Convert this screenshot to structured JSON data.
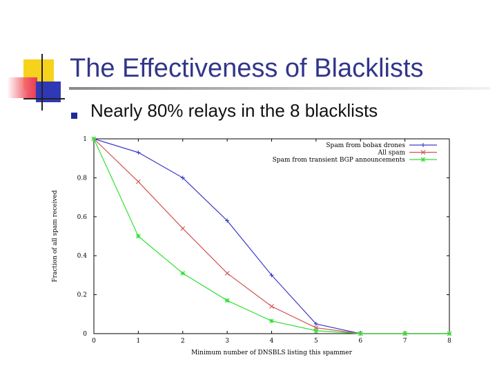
{
  "slide": {
    "title": "The Effectiveness of Blacklists",
    "bullet": "Nearly 80% relays in the 8 blacklists"
  },
  "colors": {
    "title": "#32368a",
    "blue_series": "#3c3cc8",
    "red_series": "#d05050",
    "green_series": "#30e030"
  },
  "chart_data": {
    "type": "line",
    "title": "",
    "xlabel": "Minimum number of DNSBLS listing this spammer",
    "ylabel": "Fraction of all spam received",
    "xlim": [
      0,
      8
    ],
    "ylim": [
      0,
      1
    ],
    "xticks": [
      0,
      1,
      2,
      3,
      4,
      5,
      6,
      7,
      8
    ],
    "yticks": [
      0,
      0.2,
      0.4,
      0.6,
      0.8,
      1
    ],
    "grid": false,
    "legend": "top-right",
    "x": [
      0,
      1,
      2,
      3,
      4,
      5,
      6,
      7,
      8
    ],
    "series": [
      {
        "name": "Spam from bobax drones",
        "color": "#3c3cc8",
        "marker": "+",
        "values": [
          1.0,
          0.93,
          0.8,
          0.58,
          0.3,
          0.05,
          0.0,
          0.0,
          0.0
        ]
      },
      {
        "name": "All spam",
        "color": "#d05050",
        "marker": "x",
        "values": [
          1.0,
          0.78,
          0.54,
          0.31,
          0.14,
          0.03,
          0.0,
          0.0,
          0.0
        ]
      },
      {
        "name": "Spam from transient BGP announcements",
        "color": "#30e030",
        "marker": "*",
        "values": [
          1.0,
          0.5,
          0.31,
          0.17,
          0.065,
          0.015,
          0.0,
          0.0,
          0.0
        ]
      }
    ]
  }
}
